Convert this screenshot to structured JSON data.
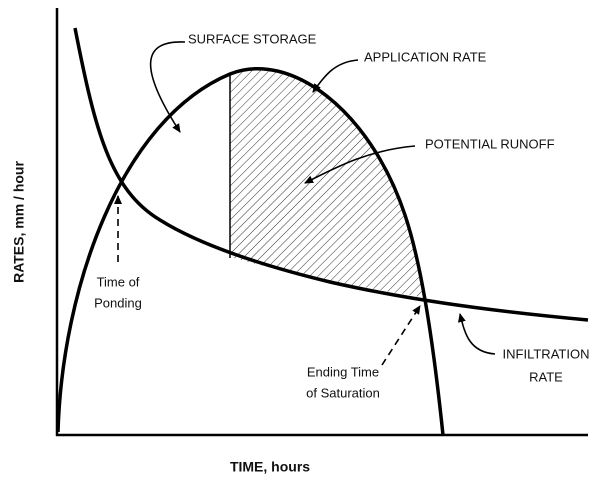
{
  "axes": {
    "y_label": "RATES, mm / hour",
    "x_label": "TIME, hours"
  },
  "labels": {
    "surface_storage": "SURFACE STORAGE",
    "application_rate": "APPLICATION RATE",
    "potential_runoff": "POTENTIAL RUNOFF",
    "time_of_ponding": [
      "Time of",
      "Ponding"
    ],
    "ending_time_of_saturation": [
      "Ending Time",
      "of Saturation"
    ],
    "infiltration_rate": [
      "INFILTRATION",
      "RATE"
    ]
  }
}
